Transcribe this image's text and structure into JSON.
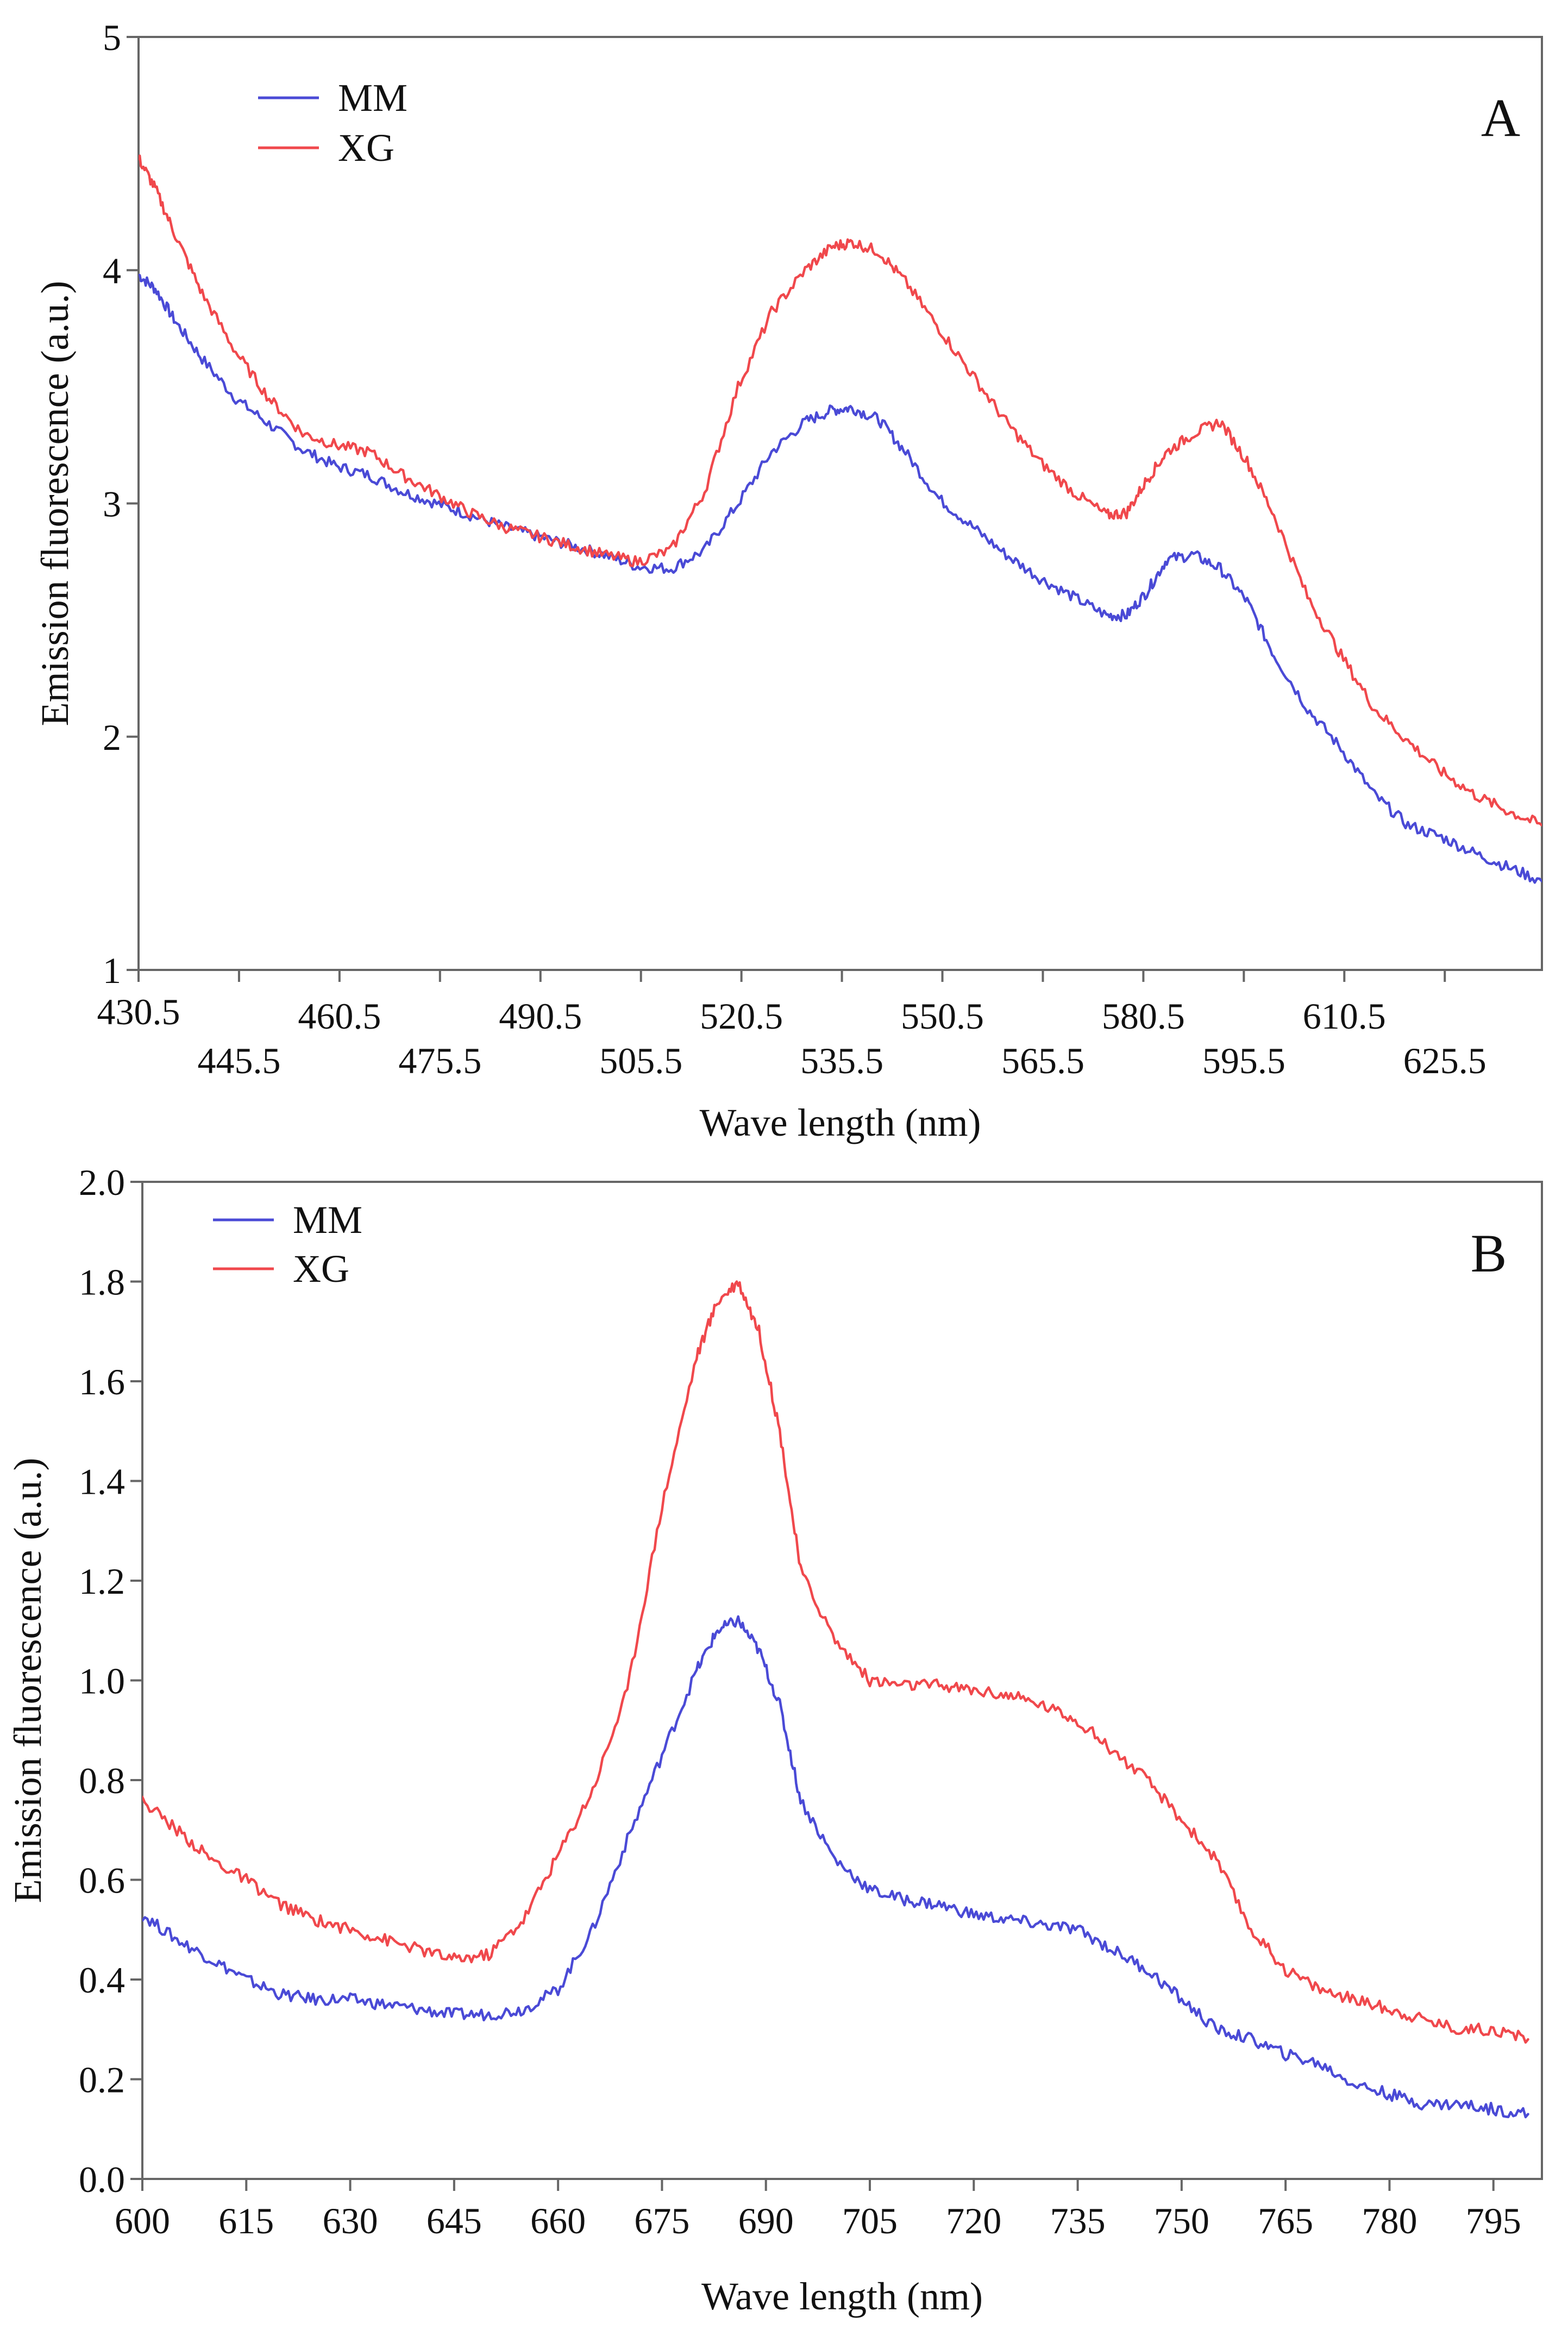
{
  "colors": {
    "MM": "#4a4ad6",
    "XG": "#f0484c",
    "frame": "#666666",
    "background": "#ffffff"
  },
  "chart_data": [
    {
      "type": "line",
      "panel": "A",
      "xlabel": "Wave length (nm)",
      "ylabel": "Emission fluorescence (a.u.)",
      "xlim": [
        430.5,
        640
      ],
      "ylim": [
        1,
        5
      ],
      "xticks": [
        "430.5",
        "445.5",
        "460.5",
        "475.5",
        "490.5",
        "505.5",
        "520.5",
        "535.5",
        "550.5",
        "565.5",
        "580.5",
        "595.5",
        "610.5",
        "625.5"
      ],
      "yticks": [
        "1",
        "2",
        "3",
        "4",
        "5"
      ],
      "legend": {
        "placement": "top-left",
        "entries": [
          "MM",
          "XG"
        ]
      },
      "series": [
        {
          "name": "MM",
          "x": [
            430.5,
            433,
            436,
            440,
            445,
            450,
            455,
            460,
            465,
            470,
            475,
            480,
            485,
            490,
            495,
            500,
            505,
            510,
            515,
            520,
            525,
            530,
            534,
            537,
            541,
            545,
            550,
            555,
            560,
            565,
            570,
            575,
            578,
            581,
            584,
            588,
            592,
            596,
            600,
            605,
            610,
            615,
            620,
            625,
            630,
            635,
            640
          ],
          "y": [
            3.98,
            3.92,
            3.78,
            3.62,
            3.45,
            3.34,
            3.23,
            3.16,
            3.12,
            3.05,
            3.0,
            2.95,
            2.9,
            2.86,
            2.82,
            2.78,
            2.73,
            2.72,
            2.8,
            3.0,
            3.22,
            3.35,
            3.4,
            3.41,
            3.36,
            3.22,
            3.02,
            2.9,
            2.78,
            2.68,
            2.6,
            2.52,
            2.52,
            2.62,
            2.76,
            2.78,
            2.72,
            2.58,
            2.35,
            2.12,
            1.95,
            1.75,
            1.62,
            1.57,
            1.5,
            1.44,
            1.38
          ]
        },
        {
          "name": "XG",
          "x": [
            430.5,
            433,
            436,
            440,
            445,
            450,
            455,
            460,
            465,
            470,
            475,
            480,
            485,
            490,
            495,
            500,
            505,
            510,
            515,
            520,
            525,
            530,
            534,
            537,
            541,
            545,
            550,
            555,
            560,
            565,
            570,
            575,
            578,
            581,
            584,
            588,
            592,
            596,
            600,
            605,
            610,
            615,
            620,
            625,
            630,
            635,
            640
          ],
          "y": [
            4.48,
            4.35,
            4.15,
            3.9,
            3.65,
            3.45,
            3.3,
            3.25,
            3.22,
            3.12,
            3.04,
            2.96,
            2.9,
            2.86,
            2.82,
            2.78,
            2.75,
            2.8,
            3.05,
            3.5,
            3.82,
            4.0,
            4.1,
            4.12,
            4.08,
            3.95,
            3.75,
            3.55,
            3.35,
            3.18,
            3.05,
            2.95,
            2.96,
            3.1,
            3.22,
            3.3,
            3.35,
            3.18,
            2.95,
            2.6,
            2.35,
            2.12,
            1.98,
            1.85,
            1.75,
            1.68,
            1.62
          ]
        }
      ]
    },
    {
      "type": "line",
      "panel": "B",
      "xlabel": "Wave length (nm)",
      "ylabel": "Emission fluorescence (a.u.)",
      "xlim": [
        600,
        802
      ],
      "ylim": [
        0.0,
        2.0
      ],
      "xticks": [
        "600",
        "615",
        "630",
        "645",
        "660",
        "675",
        "690",
        "705",
        "720",
        "735",
        "750",
        "765",
        "780",
        "795"
      ],
      "yticks": [
        "0.0",
        "0.2",
        "0.4",
        "0.6",
        "0.8",
        "1.0",
        "1.2",
        "1.4",
        "1.6",
        "1.8",
        "2.0"
      ],
      "legend": {
        "placement": "top-left",
        "entries": [
          "MM",
          "XG"
        ]
      },
      "series": [
        {
          "name": "MM",
          "x": [
            600,
            605,
            610,
            615,
            620,
            625,
            630,
            635,
            640,
            645,
            650,
            655,
            660,
            665,
            670,
            675,
            680,
            683,
            686,
            689,
            692,
            695,
            700,
            705,
            710,
            715,
            720,
            725,
            730,
            735,
            740,
            745,
            750,
            755,
            760,
            765,
            770,
            775,
            780,
            785,
            790,
            795,
            800
          ],
          "y": [
            0.53,
            0.48,
            0.44,
            0.4,
            0.37,
            0.36,
            0.36,
            0.35,
            0.34,
            0.33,
            0.33,
            0.34,
            0.38,
            0.5,
            0.68,
            0.85,
            1.02,
            1.1,
            1.12,
            1.06,
            0.95,
            0.76,
            0.64,
            0.58,
            0.56,
            0.55,
            0.53,
            0.52,
            0.51,
            0.5,
            0.46,
            0.42,
            0.36,
            0.3,
            0.28,
            0.25,
            0.23,
            0.19,
            0.17,
            0.15,
            0.15,
            0.14,
            0.13
          ]
        },
        {
          "name": "XG",
          "x": [
            600,
            605,
            610,
            615,
            620,
            625,
            630,
            635,
            640,
            645,
            650,
            655,
            660,
            665,
            670,
            675,
            680,
            683,
            686,
            689,
            692,
            695,
            700,
            705,
            710,
            715,
            720,
            725,
            730,
            735,
            740,
            745,
            750,
            755,
            760,
            765,
            770,
            775,
            780,
            785,
            790,
            795,
            800
          ],
          "y": [
            0.76,
            0.7,
            0.64,
            0.6,
            0.55,
            0.52,
            0.5,
            0.48,
            0.46,
            0.44,
            0.45,
            0.52,
            0.65,
            0.78,
            0.98,
            1.35,
            1.65,
            1.76,
            1.8,
            1.7,
            1.5,
            1.22,
            1.08,
            1.0,
            0.99,
            0.99,
            0.98,
            0.97,
            0.95,
            0.92,
            0.86,
            0.8,
            0.72,
            0.64,
            0.5,
            0.42,
            0.38,
            0.36,
            0.34,
            0.32,
            0.3,
            0.3,
            0.28
          ]
        }
      ]
    }
  ]
}
